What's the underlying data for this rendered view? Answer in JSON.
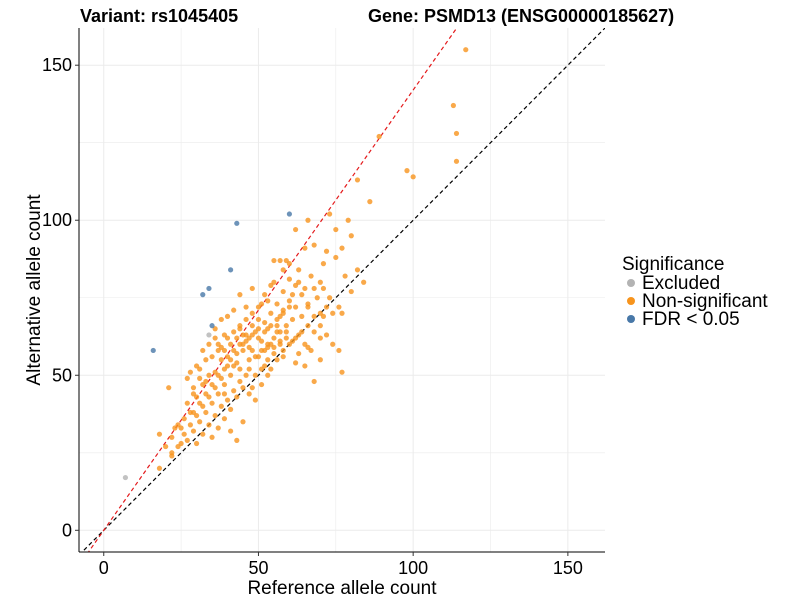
{
  "chart_data": {
    "type": "scatter",
    "title_left": "Variant: rs1045405",
    "title_right": "Gene: PSMD13 (ENSG00000185627)",
    "xlabel": "Reference allele count",
    "ylabel": "Alternative allele count",
    "xlim": [
      -8,
      162
    ],
    "ylim": [
      -7,
      162
    ],
    "xticks": [
      0,
      50,
      100,
      150
    ],
    "yticks": [
      0,
      50,
      100,
      150
    ],
    "grid": true,
    "legend": {
      "title": "Significance",
      "position": "right",
      "entries": [
        {
          "key": "excluded",
          "label": "Excluded",
          "color": "#b3b3b3"
        },
        {
          "key": "nonsig",
          "label": "Non-significant",
          "color": "#f7941d"
        },
        {
          "key": "fdr",
          "label": "FDR < 0.05",
          "color": "#4878a8"
        }
      ]
    },
    "reference_lines": [
      {
        "name": "identity",
        "slope": 1.0,
        "intercept": 0,
        "color": "#000000",
        "dash": "dashed"
      },
      {
        "name": "fit",
        "slope": 1.42,
        "intercept": 0,
        "color": "#e41a1c",
        "dash": "dashed"
      }
    ],
    "series": [
      {
        "key": "excluded",
        "points": [
          [
            7,
            17
          ],
          [
            34,
            63
          ]
        ]
      },
      {
        "key": "fdr",
        "points": [
          [
            16,
            58
          ],
          [
            32,
            76
          ],
          [
            34,
            78
          ],
          [
            35,
            66
          ],
          [
            41,
            84
          ],
          [
            43,
            99
          ],
          [
            60,
            102
          ]
        ]
      },
      {
        "key": "nonsig",
        "points": [
          [
            117,
            155
          ],
          [
            113,
            137
          ],
          [
            114,
            128
          ],
          [
            114,
            119
          ],
          [
            89,
            127
          ],
          [
            98,
            116
          ],
          [
            100,
            114
          ],
          [
            82,
            113
          ],
          [
            86,
            106
          ],
          [
            80,
            95
          ],
          [
            79,
            100
          ],
          [
            73,
            102
          ],
          [
            75,
            97
          ],
          [
            77,
            91
          ],
          [
            66,
            100
          ],
          [
            62,
            97
          ],
          [
            59,
            87
          ],
          [
            55,
            87
          ],
          [
            57,
            87
          ],
          [
            65,
            91
          ],
          [
            68,
            92
          ],
          [
            72,
            90
          ],
          [
            71,
            86
          ],
          [
            75,
            88
          ],
          [
            78,
            82
          ],
          [
            82,
            84
          ],
          [
            84,
            80
          ],
          [
            80,
            77
          ],
          [
            77,
            70
          ],
          [
            73,
            75
          ],
          [
            70,
            80
          ],
          [
            68,
            78
          ],
          [
            71,
            69
          ],
          [
            66,
            72
          ],
          [
            64,
            76
          ],
          [
            62,
            79
          ],
          [
            60,
            81
          ],
          [
            58,
            77
          ],
          [
            56,
            73
          ],
          [
            54,
            79
          ],
          [
            53,
            74
          ],
          [
            51,
            73
          ],
          [
            48,
            78
          ],
          [
            46,
            72
          ],
          [
            44,
            76
          ],
          [
            42,
            71
          ],
          [
            40,
            69
          ],
          [
            38,
            68
          ],
          [
            36,
            65
          ],
          [
            34,
            60
          ],
          [
            33,
            55
          ],
          [
            31,
            52
          ],
          [
            29,
            46
          ],
          [
            27,
            41
          ],
          [
            26,
            36
          ],
          [
            24,
            34
          ],
          [
            22,
            30
          ],
          [
            20,
            27
          ],
          [
            18,
            20
          ],
          [
            18,
            31
          ],
          [
            21,
            46
          ],
          [
            22,
            25
          ],
          [
            25,
            33
          ],
          [
            28,
            38
          ],
          [
            30,
            43
          ],
          [
            32,
            47
          ],
          [
            34,
            50
          ],
          [
            36,
            51
          ],
          [
            38,
            55
          ],
          [
            39,
            58
          ],
          [
            41,
            60
          ],
          [
            43,
            62
          ],
          [
            44,
            65
          ],
          [
            46,
            63
          ],
          [
            48,
            66
          ],
          [
            50,
            68
          ],
          [
            52,
            67
          ],
          [
            54,
            70
          ],
          [
            56,
            66
          ],
          [
            58,
            71
          ],
          [
            60,
            74
          ],
          [
            62,
            72
          ],
          [
            64,
            69
          ],
          [
            66,
            66
          ],
          [
            68,
            64
          ],
          [
            70,
            62
          ],
          [
            72,
            63
          ],
          [
            74,
            60
          ],
          [
            76,
            58
          ],
          [
            77,
            51
          ],
          [
            70,
            55
          ],
          [
            68,
            48
          ],
          [
            65,
            53
          ],
          [
            63,
            57
          ],
          [
            61,
            61
          ],
          [
            59,
            64
          ],
          [
            57,
            60
          ],
          [
            55,
            57
          ],
          [
            53,
            55
          ],
          [
            51,
            52
          ],
          [
            49,
            50
          ],
          [
            47,
            55
          ],
          [
            45,
            58
          ],
          [
            43,
            54
          ],
          [
            41,
            50
          ],
          [
            39,
            47
          ],
          [
            37,
            44
          ],
          [
            35,
            41
          ],
          [
            33,
            38
          ],
          [
            31,
            35
          ],
          [
            29,
            32
          ],
          [
            27,
            29
          ],
          [
            25,
            28
          ],
          [
            23,
            33
          ],
          [
            29,
            38
          ],
          [
            31,
            41
          ],
          [
            33,
            44
          ],
          [
            35,
            47
          ],
          [
            37,
            50
          ],
          [
            39,
            52
          ],
          [
            41,
            55
          ],
          [
            43,
            57
          ],
          [
            45,
            60
          ],
          [
            47,
            62
          ],
          [
            49,
            64
          ],
          [
            51,
            61
          ],
          [
            53,
            59
          ],
          [
            55,
            62
          ],
          [
            57,
            64
          ],
          [
            59,
            66
          ],
          [
            61,
            68
          ],
          [
            63,
            63
          ],
          [
            65,
            60
          ],
          [
            67,
            58
          ],
          [
            44,
            48
          ],
          [
            42,
            45
          ],
          [
            40,
            42
          ],
          [
            38,
            40
          ],
          [
            36,
            37
          ],
          [
            34,
            34
          ],
          [
            32,
            31
          ],
          [
            30,
            28
          ],
          [
            47,
            44
          ],
          [
            49,
            42
          ],
          [
            51,
            47
          ],
          [
            53,
            50
          ],
          [
            46,
            50
          ],
          [
            44,
            52
          ],
          [
            42,
            53
          ],
          [
            40,
            56
          ],
          [
            38,
            59
          ],
          [
            36,
            62
          ],
          [
            35,
            56
          ],
          [
            37,
            58
          ],
          [
            48,
            58
          ],
          [
            50,
            56
          ],
          [
            52,
            58
          ],
          [
            54,
            60
          ],
          [
            56,
            55
          ],
          [
            58,
            58
          ],
          [
            60,
            60
          ],
          [
            62,
            62
          ],
          [
            64,
            64
          ],
          [
            48,
            70
          ],
          [
            50,
            72
          ],
          [
            52,
            76
          ],
          [
            46,
            68
          ],
          [
            44,
            66
          ],
          [
            42,
            64
          ],
          [
            40,
            62
          ],
          [
            55,
            80
          ],
          [
            58,
            84
          ],
          [
            60,
            86
          ],
          [
            63,
            84
          ],
          [
            57,
            69
          ],
          [
            47,
            52
          ],
          [
            45,
            46
          ],
          [
            43,
            43
          ],
          [
            41,
            39
          ],
          [
            39,
            36
          ],
          [
            37,
            33
          ],
          [
            35,
            30
          ],
          [
            41,
            32
          ],
          [
            43,
            29
          ],
          [
            45,
            35
          ],
          [
            39,
            44
          ],
          [
            33,
            48
          ],
          [
            31,
            49
          ],
          [
            29,
            44
          ],
          [
            27,
            49
          ],
          [
            48,
            46
          ],
          [
            52,
            53
          ],
          [
            54,
            52
          ],
          [
            58,
            56
          ],
          [
            62,
            54
          ],
          [
            66,
            59
          ],
          [
            70,
            70
          ],
          [
            72,
            72
          ],
          [
            74,
            70
          ],
          [
            76,
            72
          ],
          [
            70,
            66
          ],
          [
            68,
            69
          ],
          [
            66,
            73
          ],
          [
            63,
            80
          ],
          [
            65,
            78
          ],
          [
            67,
            82
          ],
          [
            69,
            75
          ],
          [
            71,
            78
          ],
          [
            61,
            76
          ],
          [
            56,
            64
          ],
          [
            53,
            65
          ],
          [
            50,
            62
          ],
          [
            47,
            59
          ],
          [
            45,
            63
          ],
          [
            42,
            58
          ],
          [
            40,
            53
          ],
          [
            38,
            49
          ],
          [
            36,
            46
          ],
          [
            34,
            43
          ],
          [
            32,
            40
          ],
          [
            30,
            37
          ],
          [
            28,
            34
          ],
          [
            26,
            31
          ],
          [
            24,
            27
          ],
          [
            22,
            24
          ],
          [
            28,
            51
          ],
          [
            30,
            53
          ],
          [
            32,
            58
          ],
          [
            37,
            60
          ],
          [
            39,
            63
          ],
          [
            44,
            60
          ],
          [
            46,
            61
          ],
          [
            48,
            63
          ],
          [
            50,
            65
          ],
          [
            52,
            64
          ],
          [
            54,
            66
          ],
          [
            56,
            68
          ],
          [
            58,
            70
          ],
          [
            60,
            72
          ],
          [
            49,
            56
          ],
          [
            51,
            58
          ],
          [
            53,
            60
          ],
          [
            55,
            59
          ],
          [
            57,
            61
          ],
          [
            59,
            62
          ]
        ]
      }
    ]
  }
}
